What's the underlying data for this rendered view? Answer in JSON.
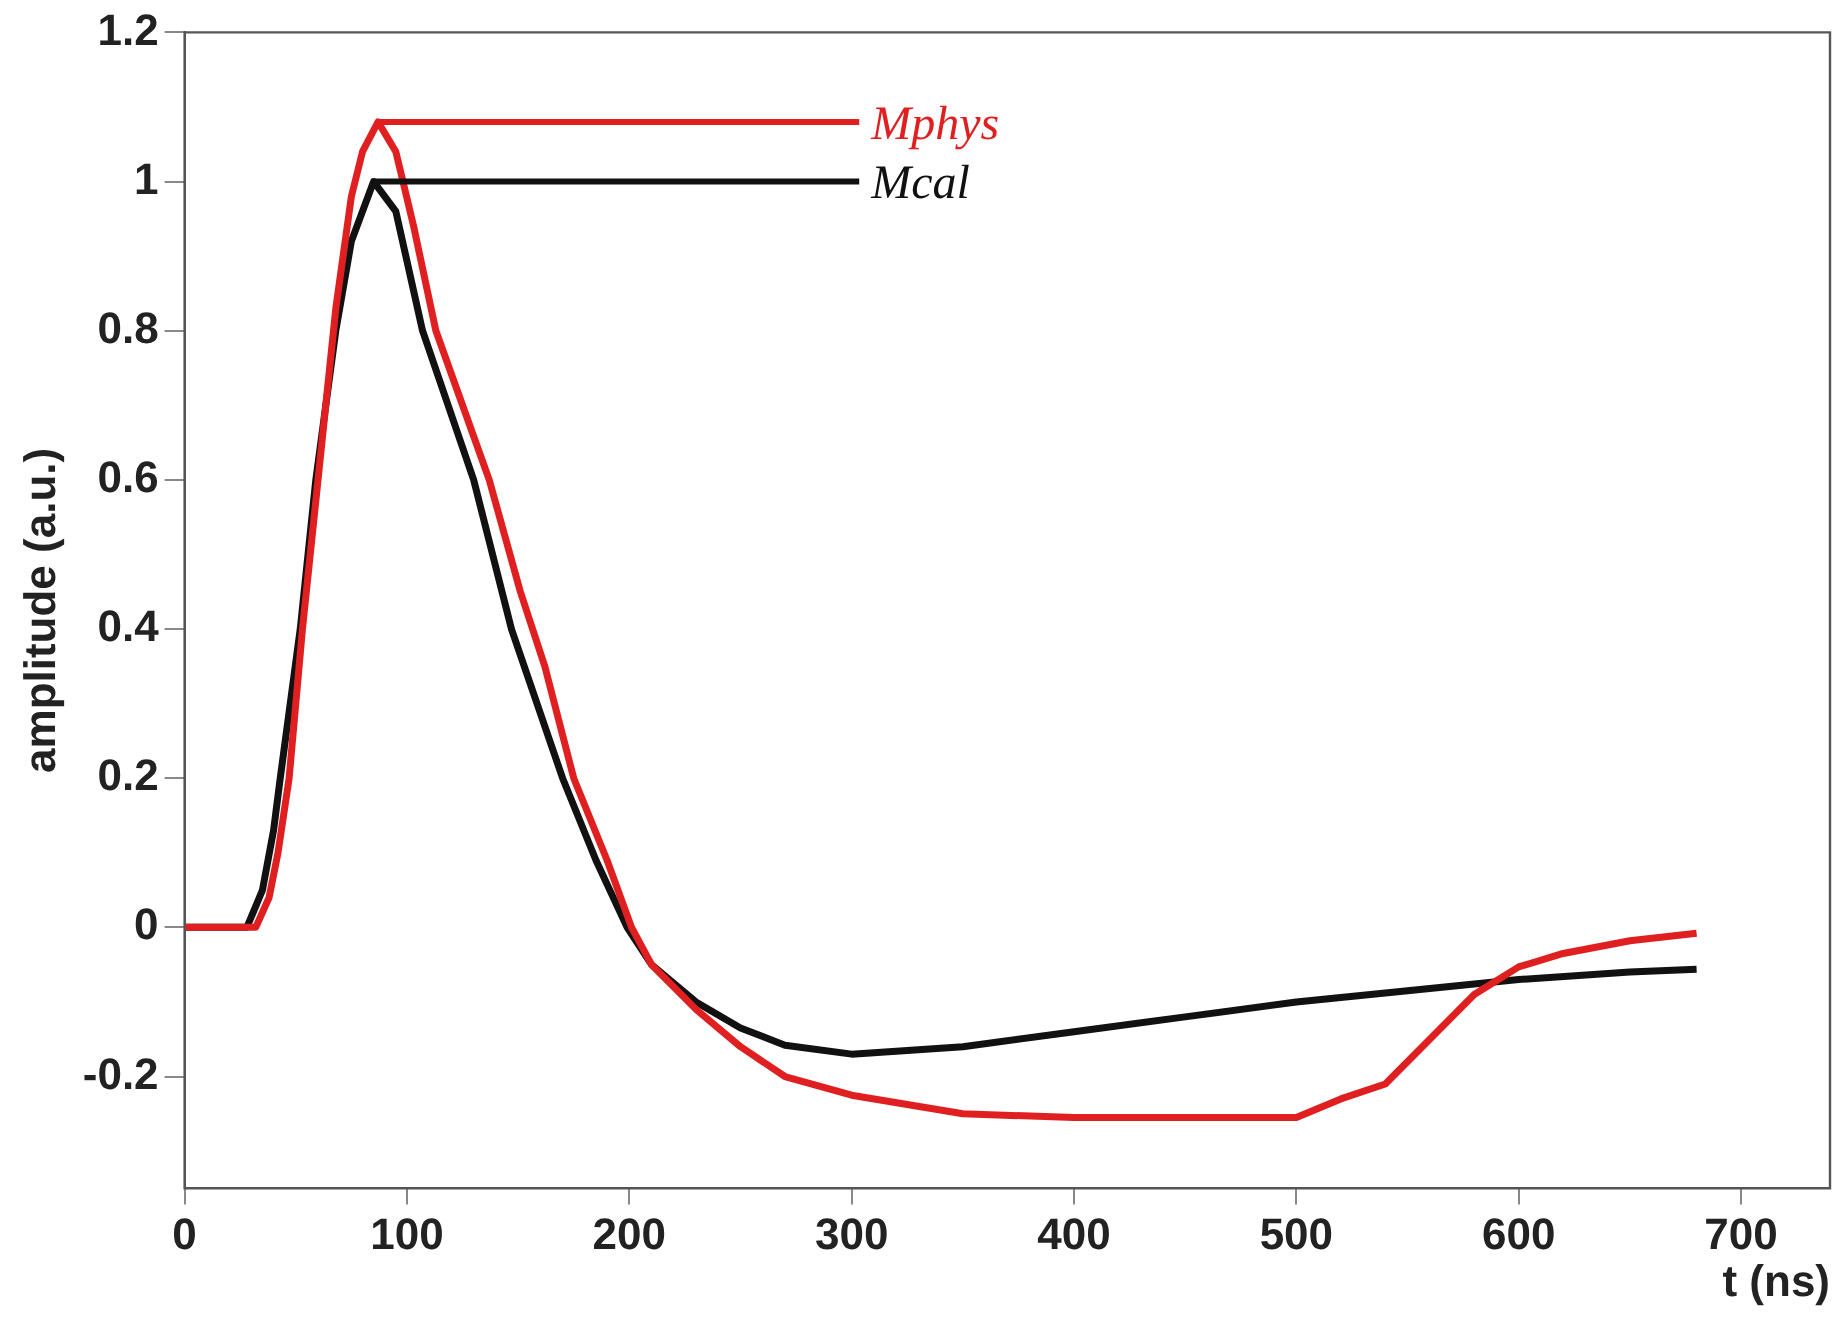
{
  "chart_data": {
    "type": "line",
    "xlabel": "t (ns)",
    "ylabel": "amplitude (a.u.)",
    "xlim": [
      0,
      740
    ],
    "ylim": [
      -0.35,
      1.2
    ],
    "xticks": [
      0,
      100,
      200,
      300,
      400,
      500,
      600,
      700
    ],
    "yticks": [
      -0.2,
      0,
      0.2,
      0.4,
      0.6,
      0.8,
      1,
      1.2
    ],
    "grid": false,
    "legend": false,
    "line_style": "solid",
    "series": [
      {
        "name": "Mphys",
        "color": "#e02020",
        "x": [
          0,
          10,
          20,
          32,
          38,
          42,
          47,
          53,
          60,
          68,
          75,
          80,
          87,
          95,
          103,
          113,
          125,
          137,
          151,
          162,
          175,
          190,
          201,
          210,
          230,
          250,
          270,
          300,
          350,
          400,
          450,
          500,
          520,
          540,
          560,
          580,
          600,
          620,
          650,
          680
        ],
        "values": [
          0,
          0,
          0,
          0,
          0.04,
          0.1,
          0.2,
          0.4,
          0.6,
          0.83,
          0.98,
          1.04,
          1.08,
          1.04,
          0.94,
          0.8,
          0.7,
          0.6,
          0.45,
          0.35,
          0.2,
          0.09,
          0,
          -0.05,
          -0.11,
          -0.16,
          -0.2,
          -0.225,
          -0.25,
          -0.255,
          -0.255,
          -0.255,
          -0.23,
          -0.21,
          -0.15,
          -0.09,
          -0.053,
          -0.035,
          -0.018,
          -0.008
        ]
      },
      {
        "name": "Mcal",
        "color": "#111111",
        "x": [
          0,
          10,
          20,
          28,
          35,
          40,
          43,
          52,
          59,
          68,
          75,
          85,
          95,
          107,
          130,
          147,
          170,
          185,
          199,
          210,
          230,
          250,
          270,
          300,
          350,
          400,
          450,
          500,
          550,
          600,
          650,
          680
        ],
        "values": [
          0,
          0,
          0,
          0,
          0.05,
          0.13,
          0.2,
          0.4,
          0.6,
          0.8,
          0.92,
          1.0,
          0.96,
          0.8,
          0.6,
          0.4,
          0.2,
          0.09,
          0,
          -0.05,
          -0.1,
          -0.135,
          -0.158,
          -0.17,
          -0.16,
          -0.14,
          -0.12,
          -0.1,
          -0.085,
          -0.07,
          -0.06,
          -0.056
        ]
      }
    ]
  }
}
